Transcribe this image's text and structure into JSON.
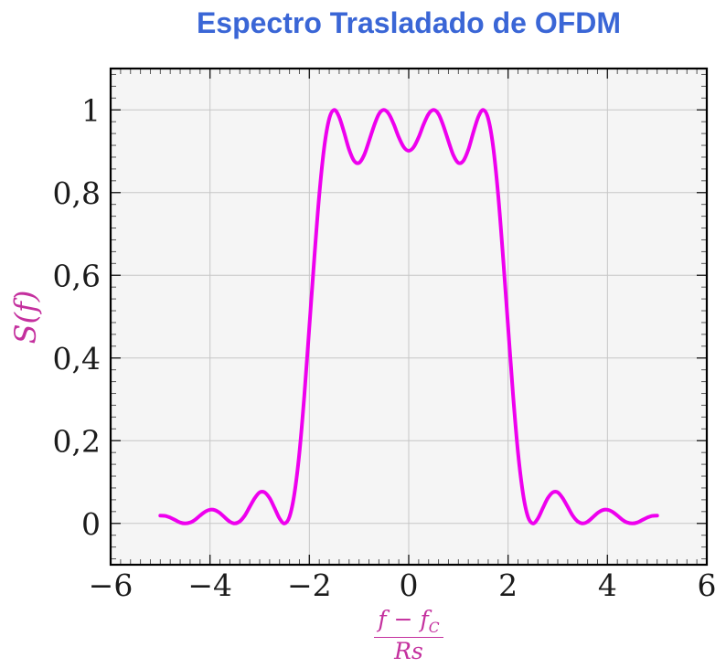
{
  "colors": {
    "title": "#3A66D6",
    "curve": "#EE00EE",
    "math_label": "#C4309E",
    "grid": "#C6C6C6",
    "plot_bg": "#F5F5F5",
    "frame": "#000000",
    "major_tick": "#222222",
    "minor_tick": "#555555",
    "tick_text": "#1B1B1B"
  },
  "chart_data": {
    "type": "line",
    "title": "Espectro Trasladado de OFDM",
    "ylabel": "S(f)",
    "xlabel_numerator_main": "f − f",
    "xlabel_numerator_sub": "C",
    "xlabel_denominator": "Rs",
    "xlim": [
      -6,
      6
    ],
    "ylim": [
      -0.1,
      1.1
    ],
    "grid": true,
    "x_tick_values": [
      -6,
      -4,
      -2,
      0,
      2,
      4,
      6
    ],
    "x_tick_labels": [
      "−6",
      "−4",
      "−2",
      "0",
      "2",
      "4",
      "6"
    ],
    "y_tick_values": [
      0,
      0.2,
      0.4,
      0.6,
      0.8,
      1
    ],
    "y_tick_labels": [
      "0",
      "0,2",
      "0,4",
      "0,6",
      "0,8",
      "1"
    ],
    "x_minor_step": 0.2,
    "y_minor_divisions": 7,
    "series": [
      {
        "name": "S(f)",
        "x_start": -5.0,
        "x_step": 0.1,
        "values": [
          0.019,
          0.018,
          0.014,
          0.008,
          0.002,
          0.0,
          0.002,
          0.009,
          0.019,
          0.028,
          0.033,
          0.032,
          0.025,
          0.014,
          0.004,
          0.0,
          0.005,
          0.019,
          0.04,
          0.061,
          0.075,
          0.075,
          0.061,
          0.037,
          0.012,
          0.0,
          0.016,
          0.072,
          0.172,
          0.311,
          0.475,
          0.643,
          0.795,
          0.91,
          0.979,
          1.0,
          0.983,
          0.945,
          0.904,
          0.877,
          0.872,
          0.89,
          0.924,
          0.961,
          0.99,
          1.0,
          0.99,
          0.965,
          0.934,
          0.91,
          0.901,
          0.91,
          0.934,
          0.965,
          0.99,
          1.0,
          0.99,
          0.961,
          0.924,
          0.89,
          0.872,
          0.877,
          0.904,
          0.945,
          0.983,
          1.0,
          0.979,
          0.91,
          0.795,
          0.643,
          0.475,
          0.311,
          0.172,
          0.072,
          0.016,
          0.0,
          0.012,
          0.037,
          0.061,
          0.075,
          0.075,
          0.061,
          0.04,
          0.019,
          0.005,
          0.0,
          0.004,
          0.014,
          0.025,
          0.032,
          0.033,
          0.028,
          0.019,
          0.009,
          0.002,
          0.0,
          0.002,
          0.008,
          0.014,
          0.018,
          0.019
        ]
      }
    ]
  }
}
